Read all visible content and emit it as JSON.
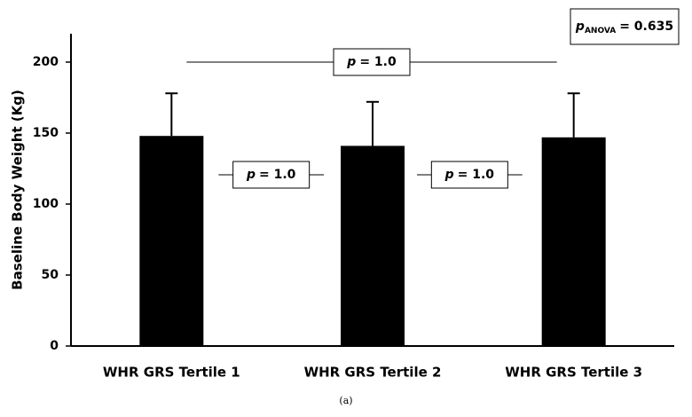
{
  "chart_data": {
    "type": "bar",
    "y_label": "Baseline Body Weight (Kg)",
    "categories": [
      "WHR GRS Tertile 1",
      "WHR GRS Tertile 2",
      "WHR GRS Tertile 3"
    ],
    "values": [
      148,
      141,
      147
    ],
    "errors": [
      30,
      31,
      31
    ],
    "color": "#000000",
    "ylim": [
      0,
      220
    ],
    "yticks": [
      0,
      50,
      100,
      150,
      200
    ],
    "comparisons": [
      {
        "p": "p",
        "rest": "= 1.0"
      },
      {
        "p": "p",
        "rest": "= 1.0"
      },
      {
        "p": "p",
        "rest": "= 1.0"
      }
    ],
    "anova": {
      "p": "p",
      "sub": "ANOVA",
      "rest": "= 0.635"
    },
    "caption": "(a)"
  }
}
